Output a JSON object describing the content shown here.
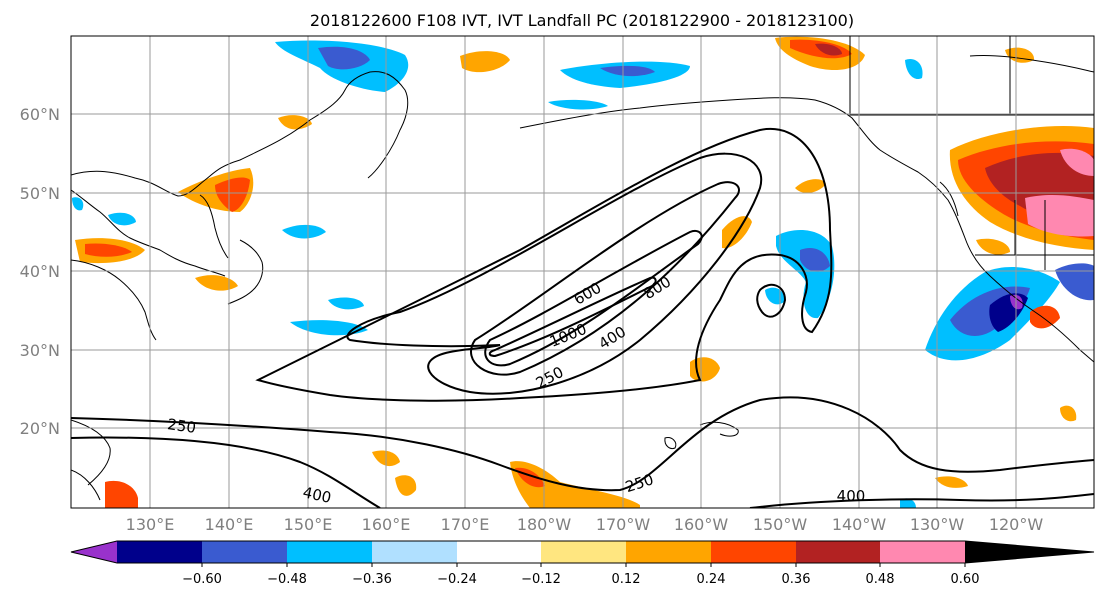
{
  "title": "2018122600 F108 IVT, IVT Landfall PC (2018122900 - 2018123100)",
  "map": {
    "lon_ticks": [
      "130°E",
      "140°E",
      "150°E",
      "160°E",
      "170°E",
      "180°W",
      "170°W",
      "160°W",
      "150°W",
      "140°W",
      "130°W",
      "120°W"
    ],
    "lat_ticks": [
      "60°N",
      "50°N",
      "40°N",
      "30°N",
      "20°N"
    ],
    "contour_labels": [
      "600",
      "800",
      "1000",
      "400",
      "250",
      "250",
      "400",
      "250",
      "400"
    ]
  },
  "colorbar": {
    "ticks": [
      "−0.60",
      "−0.48",
      "−0.36",
      "−0.24",
      "−0.12",
      "0.12",
      "0.24",
      "0.36",
      "0.48",
      "0.60"
    ],
    "colors": [
      "#9932cc",
      "#00008b",
      "#3a5bd0",
      "#00bfff",
      "#b0e0ff",
      "#ffffff",
      "#ffe680",
      "#ffa500",
      "#ff4500",
      "#b22222",
      "#ff88b0"
    ]
  }
}
